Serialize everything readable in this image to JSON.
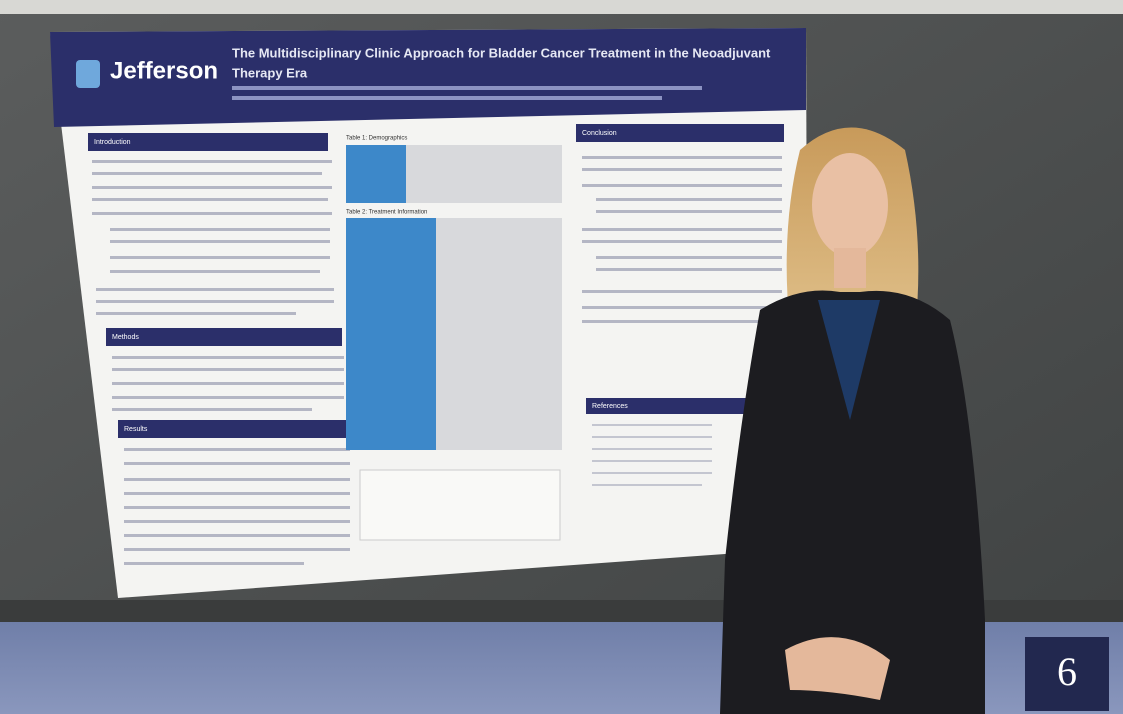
{
  "poster": {
    "logo": "Jefferson",
    "title_line1": "The Multidisciplinary Clinic Approach for Bladder Cancer Treatment in the Neoadjuvant",
    "title_line2": "Therapy Era",
    "sections": [
      "Introduction",
      "Methods",
      "Results",
      "Conclusion",
      "References"
    ],
    "tables": [
      "Table 1: Demographics",
      "Table 2: Treatment Information"
    ]
  },
  "badge": "6"
}
